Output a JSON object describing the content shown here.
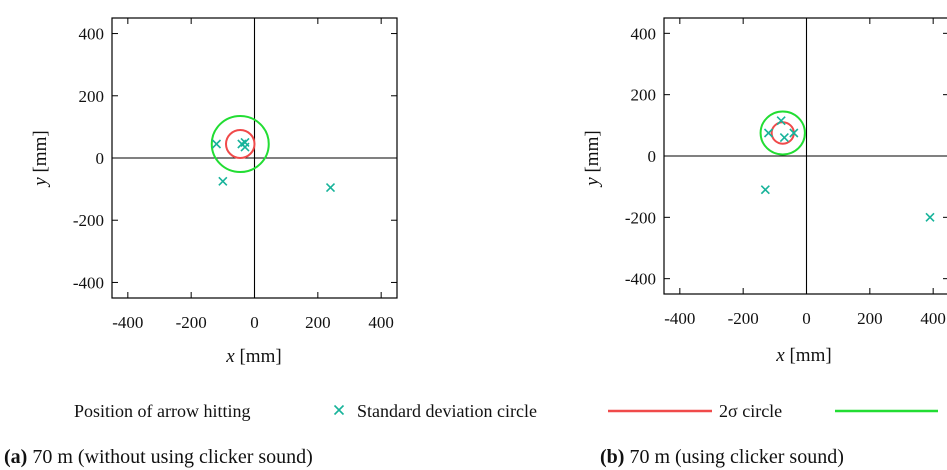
{
  "legend": {
    "position_label": "Position of arrow hitting",
    "std_label": "Standard deviation circle",
    "two_sigma_label": "2σ circle",
    "colors": {
      "points": "#17b39a",
      "std_circle": "#f04a4a",
      "two_sigma_circle": "#22dd33"
    }
  },
  "chart_data": [
    {
      "type": "scatter",
      "caption_prefix": "(a)",
      "caption_text": " 70 m (without using clicker sound)",
      "xlabel_var": "x",
      "xlabel_unit": " [mm]",
      "ylabel_var": "y",
      "ylabel_unit": " [mm]",
      "xlim": [
        -450,
        450
      ],
      "ylim": [
        -450,
        450
      ],
      "xticks": [
        -400,
        -200,
        0,
        200,
        400
      ],
      "yticks": [
        -400,
        -200,
        0,
        200,
        400
      ],
      "points": [
        [
          -120,
          45
        ],
        [
          -40,
          45
        ],
        [
          -30,
          50
        ],
        [
          -30,
          35
        ],
        [
          -100,
          -75
        ],
        [
          240,
          -95
        ]
      ],
      "std_circle": {
        "cx": -45,
        "cy": 45,
        "r": 45
      },
      "two_sigma_circle": {
        "cx": -45,
        "cy": 45,
        "r": 90
      }
    },
    {
      "type": "scatter",
      "caption_prefix": "(b)",
      "caption_text": " 70 m (using clicker sound)",
      "xlabel_var": "x",
      "xlabel_unit": " [mm]",
      "ylabel_var": "y",
      "ylabel_unit": " [mm]",
      "xlim": [
        -450,
        450
      ],
      "ylim": [
        -450,
        450
      ],
      "xticks": [
        -400,
        -200,
        0,
        200,
        400
      ],
      "yticks": [
        -400,
        -200,
        0,
        200,
        400
      ],
      "points": [
        [
          -120,
          75
        ],
        [
          -80,
          115
        ],
        [
          -70,
          60
        ],
        [
          -40,
          75
        ],
        [
          -130,
          -110
        ],
        [
          390,
          -200
        ]
      ],
      "std_circle": {
        "cx": -75,
        "cy": 75,
        "r": 35
      },
      "two_sigma_circle": {
        "cx": -75,
        "cy": 75,
        "r": 70
      }
    }
  ]
}
